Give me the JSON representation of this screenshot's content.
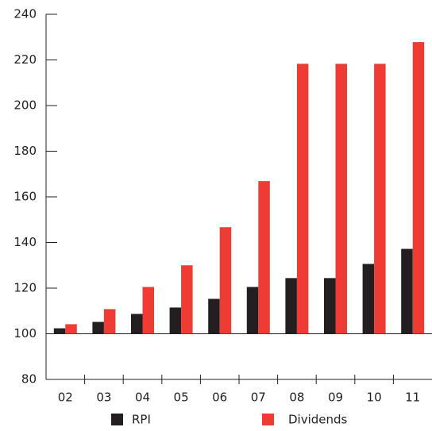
{
  "chart_data": {
    "type": "bar",
    "categories": [
      "02",
      "03",
      "04",
      "05",
      "06",
      "07",
      "08",
      "09",
      "10",
      "11"
    ],
    "series": [
      {
        "name": "RPI",
        "color": "#231f20",
        "values": [
          102.4,
          105.2,
          108.7,
          111.5,
          115.3,
          120.5,
          124.4,
          124.4,
          130.6,
          137.2
        ]
      },
      {
        "name": "Dividends",
        "color": "#ee3b33",
        "values": [
          104.2,
          110.8,
          120.5,
          130,
          146.7,
          166.9,
          218.3,
          218.3,
          218.3,
          227.8
        ]
      }
    ],
    "ylim": [
      80,
      240
    ],
    "yticks": [
      80,
      100,
      120,
      140,
      160,
      180,
      200,
      220,
      240
    ],
    "baseline": 100,
    "grid": false,
    "legend": "bottom"
  }
}
